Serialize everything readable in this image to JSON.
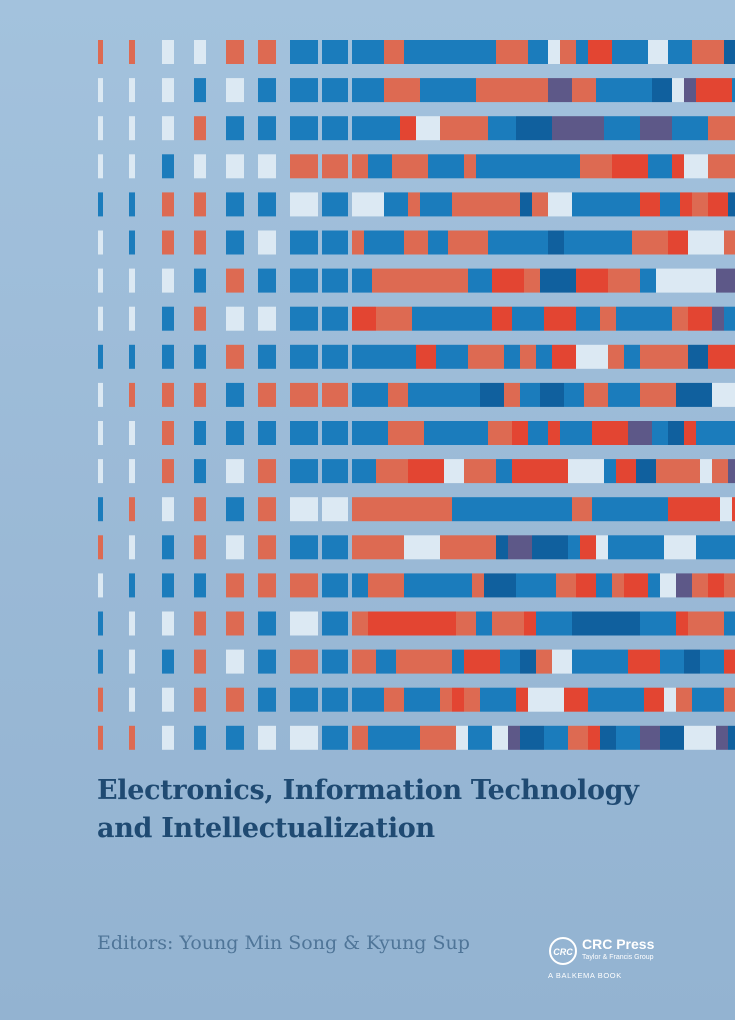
{
  "cover": {
    "title_line1": "Electronics, Information Technology",
    "title_line2": "and Intellectualization",
    "editors": "Editors: Young Min Song & Kyung Sup"
  },
  "publisher": {
    "logo_text": "CRC",
    "name": "CRC Press",
    "group": "Taylor & Francis Group",
    "imprint": "A BALKEMA BOOK"
  },
  "palette": {
    "background": "#9dbcd8",
    "blue": "#1b7cbc",
    "deep_blue": "#10609e",
    "coral": "#dd6a52",
    "red": "#e34532",
    "light": "#dce9f3",
    "purple": "#5d5888",
    "title_color": "#1f4a72"
  }
}
